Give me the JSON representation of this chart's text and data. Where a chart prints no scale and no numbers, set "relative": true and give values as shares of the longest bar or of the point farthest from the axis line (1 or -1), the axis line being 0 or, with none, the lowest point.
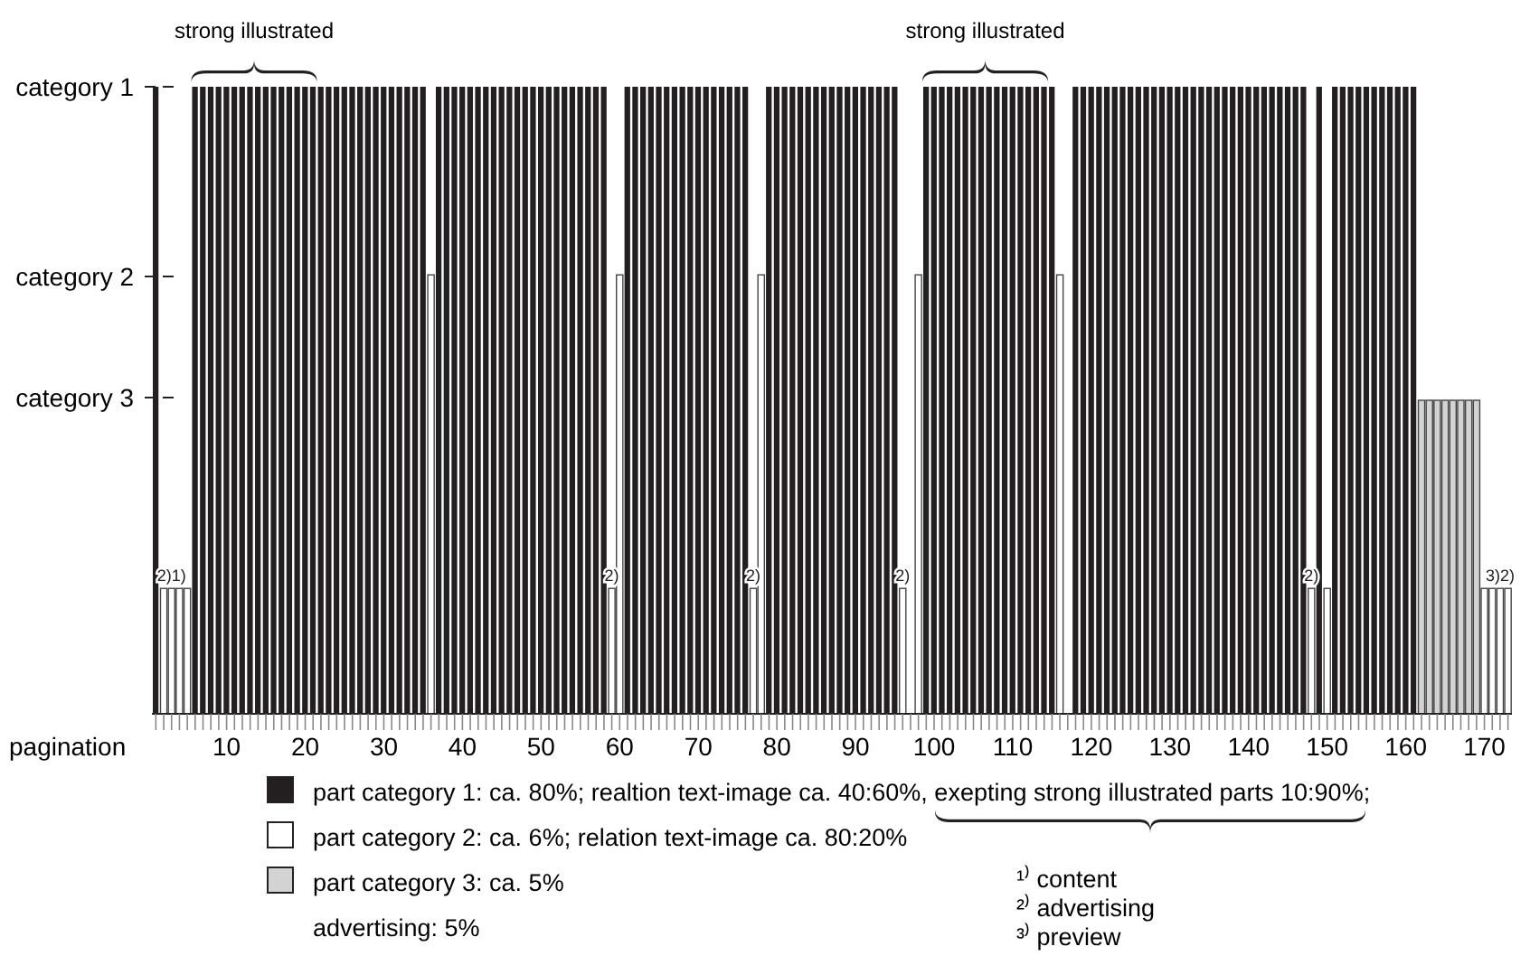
{
  "chart_data": {
    "type": "bar",
    "xlabel": "pagination",
    "categories": [
      null,
      null,
      null,
      null,
      null,
      null,
      null,
      null,
      null,
      "10",
      null,
      null,
      null,
      null,
      null,
      null,
      null,
      null,
      null,
      "20",
      null,
      null,
      null,
      null,
      null,
      null,
      null,
      null,
      null,
      "30",
      null,
      null,
      null,
      null,
      null,
      null,
      null,
      null,
      null,
      "40",
      null,
      null,
      null,
      null,
      null,
      null,
      null,
      null,
      null,
      "50",
      null,
      null,
      null,
      null,
      null,
      null,
      null,
      null,
      null,
      "60",
      null,
      null,
      null,
      null,
      null,
      null,
      null,
      null,
      null,
      "70",
      null,
      null,
      null,
      null,
      null,
      null,
      null,
      null,
      null,
      "80",
      null,
      null,
      null,
      null,
      null,
      null,
      null,
      null,
      null,
      "90",
      null,
      null,
      null,
      null,
      null,
      null,
      null,
      null,
      null,
      "100",
      null,
      null,
      null,
      null,
      null,
      null,
      null,
      null,
      null,
      "110",
      null,
      null,
      null,
      null,
      null,
      null,
      null,
      null,
      null,
      "120",
      null,
      null,
      null,
      null,
      null,
      null,
      null,
      null,
      null,
      "130",
      null,
      null,
      null,
      null,
      null,
      null,
      null,
      null,
      null,
      "140",
      null,
      null,
      null,
      null,
      null,
      null,
      null,
      null,
      null,
      "150",
      null,
      null,
      null,
      null,
      null,
      null,
      null,
      null,
      null,
      "160",
      null,
      null,
      null,
      null,
      null,
      null,
      null,
      null,
      null,
      "170",
      null,
      null,
      null
    ],
    "relative": true,
    "legend": "bottom",
    "series": [
      {
        "name": "part category 1: ca. 80%; realtion text-image ca. 40:60%, exepting strong illustrated parts 10:90%;",
        "color": "#231f20",
        "values": [
          1,
          null,
          null,
          null,
          null,
          1,
          1,
          1,
          1,
          1,
          1,
          1,
          1,
          1,
          1,
          1,
          1,
          1,
          1,
          1,
          1,
          1,
          1,
          1,
          1,
          1,
          1,
          1,
          1,
          1,
          1,
          1,
          1,
          1,
          1,
          null,
          1,
          1,
          1,
          1,
          1,
          1,
          1,
          1,
          1,
          1,
          1,
          1,
          1,
          1,
          1,
          1,
          1,
          1,
          1,
          1,
          1,
          1,
          null,
          null,
          1,
          1,
          1,
          1,
          1,
          1,
          1,
          1,
          1,
          1,
          1,
          1,
          1,
          1,
          1,
          1,
          null,
          null,
          1,
          1,
          1,
          1,
          1,
          1,
          1,
          1,
          1,
          1,
          1,
          1,
          1,
          1,
          1,
          1,
          1,
          null,
          null,
          null,
          1,
          1,
          1,
          1,
          1,
          1,
          1,
          1,
          1,
          1,
          1,
          1,
          1,
          1,
          1,
          1,
          1,
          null,
          null,
          1,
          1,
          1,
          1,
          1,
          1,
          1,
          1,
          1,
          1,
          1,
          1,
          1,
          1,
          1,
          1,
          1,
          1,
          1,
          1,
          1,
          1,
          1,
          1,
          1,
          1,
          1,
          1,
          1,
          1,
          null,
          1,
          null,
          1,
          1,
          1,
          1,
          1,
          1,
          1,
          1,
          1,
          1,
          1,
          null,
          null,
          null,
          null,
          null,
          null,
          null,
          null,
          null,
          null,
          null,
          null
        ]
      },
      {
        "name": "part category 2: ca. 6%; relation text-image ca. 80:20%",
        "color": "#ffffff",
        "values": [
          null,
          null,
          null,
          null,
          null,
          null,
          null,
          null,
          null,
          null,
          null,
          null,
          null,
          null,
          null,
          null,
          null,
          null,
          null,
          null,
          null,
          null,
          null,
          null,
          null,
          null,
          null,
          null,
          null,
          null,
          null,
          null,
          null,
          null,
          null,
          0.7,
          null,
          null,
          null,
          null,
          null,
          null,
          null,
          null,
          null,
          null,
          null,
          null,
          null,
          null,
          null,
          null,
          null,
          null,
          null,
          null,
          null,
          null,
          null,
          0.7,
          null,
          null,
          null,
          null,
          null,
          null,
          null,
          null,
          null,
          null,
          null,
          null,
          null,
          null,
          null,
          null,
          null,
          0.7,
          null,
          null,
          null,
          null,
          null,
          null,
          null,
          null,
          null,
          null,
          null,
          null,
          null,
          null,
          null,
          null,
          null,
          null,
          null,
          0.7,
          null,
          null,
          null,
          null,
          null,
          null,
          null,
          null,
          null,
          null,
          null,
          null,
          null,
          null,
          null,
          null,
          null,
          0.7,
          null,
          null,
          null,
          null,
          null,
          null,
          null,
          null,
          null,
          null,
          null,
          null,
          null,
          null,
          null,
          null,
          null,
          null,
          null,
          null,
          null,
          null,
          null,
          null,
          null,
          null,
          null,
          null,
          null,
          null,
          null,
          null,
          null,
          null,
          null,
          null,
          null,
          null,
          null,
          null,
          null,
          null,
          null,
          null,
          null,
          null,
          null,
          null,
          null,
          null,
          null,
          null,
          null,
          null,
          null,
          null,
          null
        ]
      },
      {
        "name": "part category 3: ca. 5%",
        "color": "#d3d3d3",
        "values": [
          null,
          null,
          null,
          null,
          null,
          null,
          null,
          null,
          null,
          null,
          null,
          null,
          null,
          null,
          null,
          null,
          null,
          null,
          null,
          null,
          null,
          null,
          null,
          null,
          null,
          null,
          null,
          null,
          null,
          null,
          null,
          null,
          null,
          null,
          null,
          null,
          null,
          null,
          null,
          null,
          null,
          null,
          null,
          null,
          null,
          null,
          null,
          null,
          null,
          null,
          null,
          null,
          null,
          null,
          null,
          null,
          null,
          null,
          null,
          null,
          null,
          null,
          null,
          null,
          null,
          null,
          null,
          null,
          null,
          null,
          null,
          null,
          null,
          null,
          null,
          null,
          null,
          null,
          null,
          null,
          null,
          null,
          null,
          null,
          null,
          null,
          null,
          null,
          null,
          null,
          null,
          null,
          null,
          null,
          null,
          null,
          null,
          null,
          null,
          null,
          null,
          null,
          null,
          null,
          null,
          null,
          null,
          null,
          null,
          null,
          null,
          null,
          null,
          null,
          null,
          null,
          null,
          null,
          null,
          null,
          null,
          null,
          null,
          null,
          null,
          null,
          null,
          null,
          null,
          null,
          null,
          null,
          null,
          null,
          null,
          null,
          null,
          null,
          null,
          null,
          null,
          null,
          null,
          null,
          null,
          null,
          null,
          null,
          null,
          null,
          null,
          null,
          null,
          null,
          null,
          null,
          null,
          null,
          null,
          null,
          null,
          0.5,
          0.5,
          0.5,
          0.5,
          0.5,
          0.5,
          0.5,
          0.5,
          null,
          null,
          null,
          null
        ]
      },
      {
        "color": "#ffffff",
        "values": [
          null,
          0.2,
          0.2,
          0.2,
          0.2,
          null,
          null,
          null,
          null,
          null,
          null,
          null,
          null,
          null,
          null,
          null,
          null,
          null,
          null,
          null,
          null,
          null,
          null,
          null,
          null,
          null,
          null,
          null,
          null,
          null,
          null,
          null,
          null,
          null,
          null,
          null,
          null,
          null,
          null,
          null,
          null,
          null,
          null,
          null,
          null,
          null,
          null,
          null,
          null,
          null,
          null,
          null,
          null,
          null,
          null,
          null,
          null,
          null,
          0.2,
          null,
          null,
          null,
          null,
          null,
          null,
          null,
          null,
          null,
          null,
          null,
          null,
          null,
          null,
          null,
          null,
          null,
          0.2,
          null,
          null,
          null,
          null,
          null,
          null,
          null,
          null,
          null,
          null,
          null,
          null,
          null,
          null,
          null,
          null,
          null,
          null,
          0.2,
          null,
          null,
          null,
          null,
          null,
          null,
          null,
          null,
          null,
          null,
          null,
          null,
          null,
          null,
          null,
          null,
          null,
          null,
          null,
          null,
          null,
          null,
          null,
          null,
          null,
          null,
          null,
          null,
          null,
          null,
          null,
          null,
          null,
          null,
          null,
          null,
          null,
          null,
          null,
          null,
          null,
          null,
          null,
          null,
          null,
          null,
          null,
          null,
          null,
          null,
          null,
          0.2,
          null,
          0.2,
          null,
          null,
          null,
          null,
          null,
          null,
          null,
          null,
          null,
          null,
          null,
          null,
          null,
          null,
          null,
          null,
          null,
          null,
          null,
          0.2,
          0.2,
          0.2,
          0.2
        ]
      }
    ],
    "annotations": [
      "strong illustrated",
      "strong illustrated",
      "advertising: 5%",
      "¹⁾ content",
      "²⁾ advertising",
      "³⁾ preview",
      "category 1",
      "category 2",
      "category 3",
      {
        "text": "2)1)",
        "y": 0.2
      },
      {
        "text": "2)",
        "y": 0.2
      },
      {
        "text": "2)",
        "y": 0.2
      },
      {
        "text": "2)",
        "y": 0.2
      },
      {
        "text": "2)",
        "y": 0.2
      },
      {
        "text": "3)2)",
        "y": 0.2
      }
    ]
  }
}
